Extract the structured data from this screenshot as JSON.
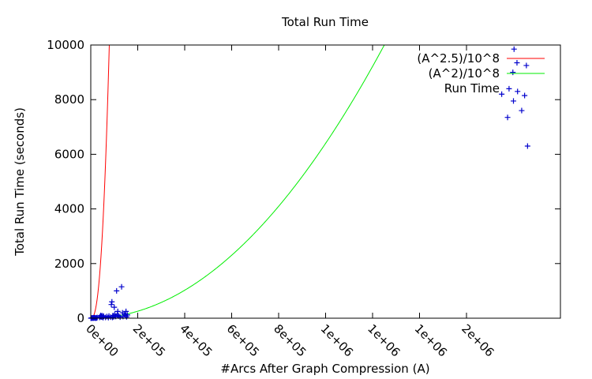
{
  "chart_data": {
    "type": "line",
    "title": "Total Run Time",
    "xlabel": "#Arcs After Graph Compression (A)",
    "ylabel": "Total Run Time (seconds)",
    "xlim": [
      0,
      1600000
    ],
    "ylim": [
      0,
      10000
    ],
    "x_ticks": [
      {
        "value": 0,
        "label": "0e+00"
      },
      {
        "value": 160000,
        "label": "2e+05"
      },
      {
        "value": 320000,
        "label": "4e+05"
      },
      {
        "value": 480000,
        "label": "6e+05"
      },
      {
        "value": 640000,
        "label": "8e+05"
      },
      {
        "value": 800000,
        "label": "1e+06"
      },
      {
        "value": 960000,
        "label": "1e+06"
      },
      {
        "value": 1120000,
        "label": "1e+06"
      },
      {
        "value": 1280000,
        "label": "2e+06"
      }
    ],
    "y_ticks": [
      0,
      2000,
      4000,
      6000,
      8000,
      10000
    ],
    "grid": false,
    "legend_position": "top-right",
    "series": [
      {
        "name": "(A^2.5)/10^8",
        "kind": "function",
        "exponent": 2.5,
        "divisor": 100000000,
        "color": "#ff0000"
      },
      {
        "name": "(A^2)/10^8",
        "kind": "function",
        "exponent": 2,
        "divisor": 100000000,
        "color": "#00ee00"
      },
      {
        "name": "Run Time",
        "kind": "points",
        "marker": "plus",
        "color": "#0000cc",
        "points": [
          [
            500,
            0
          ],
          [
            2000,
            5
          ],
          [
            4000,
            10
          ],
          [
            6000,
            2
          ],
          [
            8000,
            15
          ],
          [
            10000,
            5
          ],
          [
            12000,
            20
          ],
          [
            14000,
            10
          ],
          [
            16000,
            3
          ],
          [
            18000,
            8
          ],
          [
            20000,
            12
          ],
          [
            22000,
            25
          ],
          [
            30000,
            30
          ],
          [
            32000,
            60
          ],
          [
            34000,
            100
          ],
          [
            35000,
            50
          ],
          [
            36000,
            80
          ],
          [
            38000,
            40
          ],
          [
            40000,
            90
          ],
          [
            42000,
            20
          ],
          [
            44000,
            70
          ],
          [
            50000,
            30
          ],
          [
            55000,
            60
          ],
          [
            60000,
            20
          ],
          [
            62000,
            80
          ],
          [
            68000,
            40
          ],
          [
            70000,
            500
          ],
          [
            72000,
            600
          ],
          [
            74000,
            30
          ],
          [
            76000,
            100
          ],
          [
            78000,
            50
          ],
          [
            80000,
            400
          ],
          [
            82000,
            150
          ],
          [
            85000,
            60
          ],
          [
            88000,
            1000
          ],
          [
            90000,
            120
          ],
          [
            92000,
            250
          ],
          [
            95000,
            80
          ],
          [
            100000,
            40
          ],
          [
            105000,
            1150
          ],
          [
            108000,
            200
          ],
          [
            110000,
            60
          ],
          [
            115000,
            150
          ],
          [
            118000,
            100
          ],
          [
            120000,
            250
          ],
          [
            122000,
            50
          ],
          [
            125000,
            120
          ],
          [
            1400000,
            8200
          ],
          [
            1420000,
            7350
          ],
          [
            1425000,
            8400
          ],
          [
            1438000,
            9000
          ],
          [
            1440000,
            7950
          ],
          [
            1442000,
            9850
          ],
          [
            1452000,
            9350
          ],
          [
            1454000,
            8300
          ],
          [
            1468000,
            7600
          ],
          [
            1478000,
            8150
          ],
          [
            1484000,
            9250
          ],
          [
            1488000,
            6300
          ]
        ]
      }
    ]
  }
}
